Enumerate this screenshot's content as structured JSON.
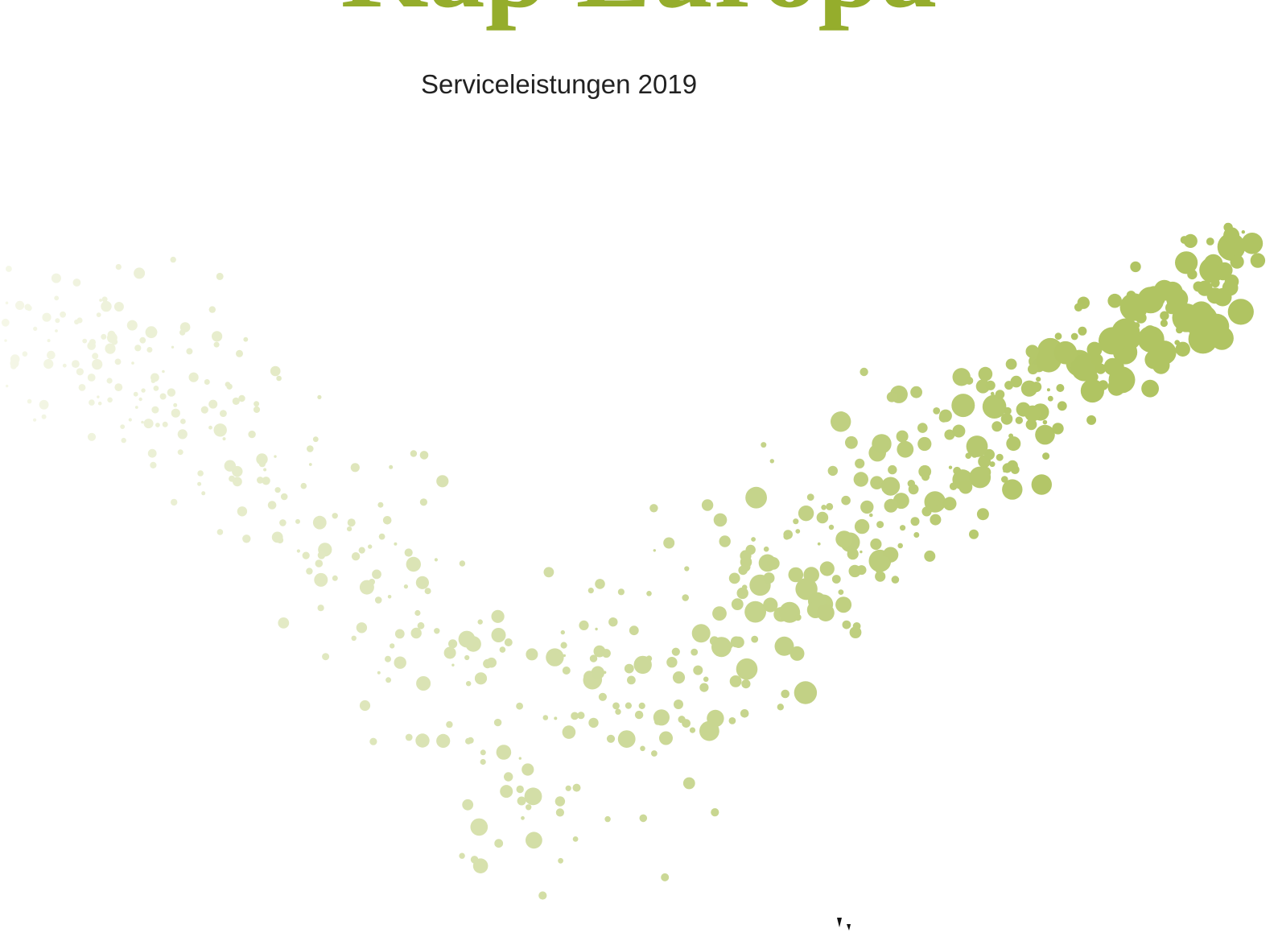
{
  "header": {
    "title": "Kap Europa",
    "subtitle": "Serviceleistungen 2019"
  }
}
